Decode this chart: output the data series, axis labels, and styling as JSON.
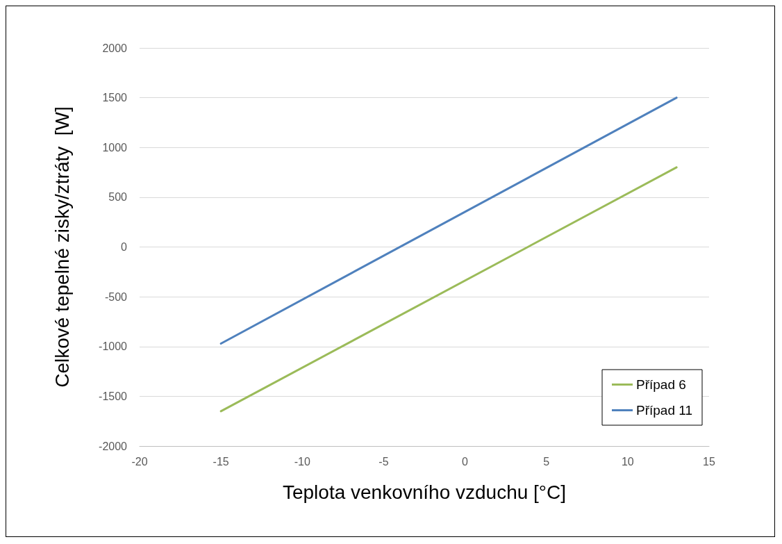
{
  "chart_data": {
    "type": "line",
    "xlabel": "Teplota venkovního vzduchu [°C]",
    "ylabel": "Celkové tepelné zisky/ztráty  [W]",
    "xlim": [
      -20,
      15
    ],
    "xticks": [
      -20,
      -15,
      -10,
      -5,
      0,
      5,
      10,
      15
    ],
    "ylim": [
      -2000,
      2000
    ],
    "yticks": [
      -2000,
      -1500,
      -1000,
      -500,
      0,
      500,
      1000,
      1500,
      2000
    ],
    "x": [
      -15,
      13
    ],
    "grid": "y",
    "legend": "bottom right",
    "marker": "none",
    "line_style": "solid",
    "series": [
      {
        "name": "Případ 6",
        "color": "#9bbb59",
        "values": [
          -1650,
          800
        ]
      },
      {
        "name": "Případ 11",
        "color": "#4f81bd",
        "values": [
          -970,
          1500
        ]
      }
    ]
  }
}
